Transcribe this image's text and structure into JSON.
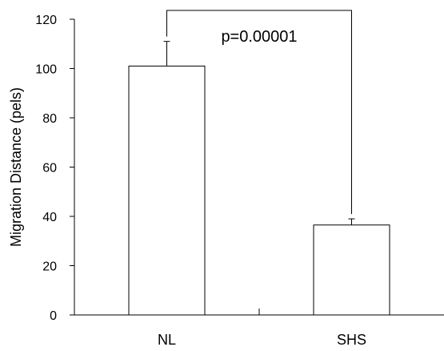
{
  "chart_data": {
    "type": "bar",
    "categories": [
      "NL",
      "SHS"
    ],
    "values": [
      101,
      36.5
    ],
    "error_upper": [
      111,
      39
    ],
    "ylabel": "Migration Distance (pels)",
    "xlabel": "",
    "ylim": [
      0,
      120
    ],
    "yticks": [
      0,
      20,
      40,
      60,
      80,
      100,
      120
    ],
    "ytick_labels": [
      "0",
      "20",
      "40",
      "60",
      "80",
      "100",
      "120"
    ],
    "grid": false,
    "annotation": {
      "text": "p=0.00001",
      "type": "significance-bracket",
      "between": [
        "NL",
        "SHS"
      ]
    },
    "colors": {
      "bar_fill": "#ffffff",
      "stroke": "#000000"
    }
  }
}
